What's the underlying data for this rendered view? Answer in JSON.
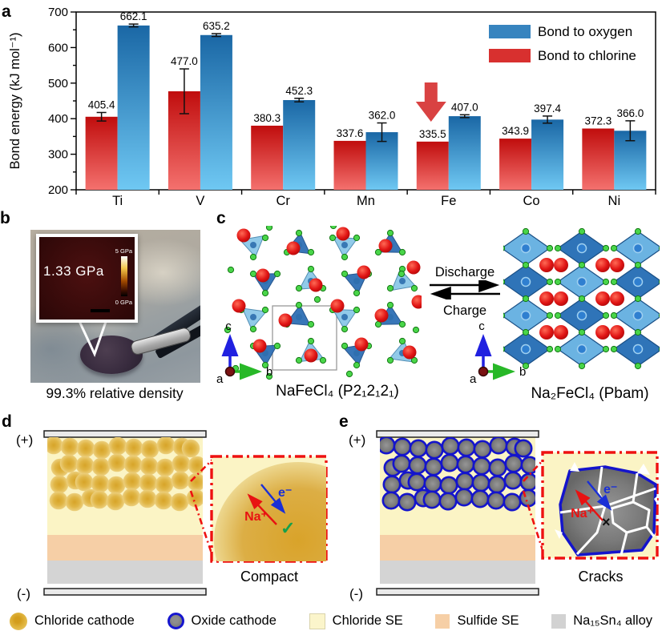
{
  "panels": {
    "a": "a",
    "b": "b",
    "c": "c",
    "d": "d",
    "e": "e"
  },
  "colors": {
    "bar_red_top": "#c00d0d",
    "bar_red_bottom": "#f4716e",
    "bar_blue_top": "#1a67a5",
    "bar_blue_bottom": "#6fc8f3",
    "legend_red": "#d8302f",
    "legend_blue": "#3784bf",
    "annotation_arrow": "#d94242",
    "na_red": "#e81212",
    "e_blue": "#1a2fd6",
    "check_green": "#16a04b",
    "chloride_se": "#fbf4c5",
    "sulfide_se": "#f6cfa6",
    "alloy_gray": "#d4d4d4",
    "cathode_gold": "#d39d1c",
    "oxide_gray": "#7b7b7b",
    "oxide_ring": "#1414cc"
  },
  "chart_data": {
    "type": "bar",
    "categories": [
      "Ti",
      "V",
      "Cr",
      "Mn",
      "Fe",
      "Co",
      "Ni"
    ],
    "series": [
      {
        "name": "Bond to chlorine",
        "color": "#d8302f",
        "values": [
          405.4,
          477.0,
          380.3,
          337.6,
          335.5,
          343.9,
          372.3
        ],
        "errors": [
          12,
          63,
          0,
          0,
          0,
          0,
          0
        ]
      },
      {
        "name": "Bond to oxygen",
        "color": "#3784bf",
        "values": [
          662.1,
          635.2,
          452.3,
          362.0,
          407.0,
          397.4,
          366.0
        ],
        "errors": [
          4,
          4,
          5,
          26,
          4,
          10,
          28
        ]
      }
    ],
    "legend_order": [
      "Bond to oxygen",
      "Bond to chlorine"
    ],
    "ylabel": "Bond energy (kJ mol⁻¹)",
    "ylim": [
      200,
      700
    ],
    "ytick_major": 100,
    "ytick_minor": 50,
    "legend_position": "top-right",
    "annotation": {
      "symbol": "down-arrow",
      "category": "Fe",
      "series": "Bond to chlorine"
    }
  },
  "panel_b": {
    "inset_value": "1.33 GPa",
    "scale_top": "5 GPa",
    "scale_bottom": "0 GPa",
    "caption": "99.3% relative density"
  },
  "panel_c": {
    "discharge": "Discharge",
    "charge": "Charge",
    "left_formula": "NaFeCl₄ (P2₁2₁2₁)",
    "right_formula": "Na₂FeCl₄ (Pbam)",
    "axis_a": "a",
    "axis_b": "b",
    "axis_c": "c"
  },
  "panel_d": {
    "plus": "(+)",
    "minus": "(-)",
    "na": "Na⁺",
    "electron": "e⁻",
    "mark": "✓",
    "caption": "Compact"
  },
  "panel_e": {
    "plus": "(+)",
    "minus": "(-)",
    "na": "Na⁺",
    "electron": "e⁻",
    "mark": "×",
    "caption": "Cracks"
  },
  "legend": {
    "items": [
      {
        "label": "Chloride cathode"
      },
      {
        "label": "Oxide cathode"
      },
      {
        "label": "Chloride SE"
      },
      {
        "label": "Sulfide SE"
      },
      {
        "label": "Na₁₅Sn₄ alloy"
      }
    ]
  }
}
